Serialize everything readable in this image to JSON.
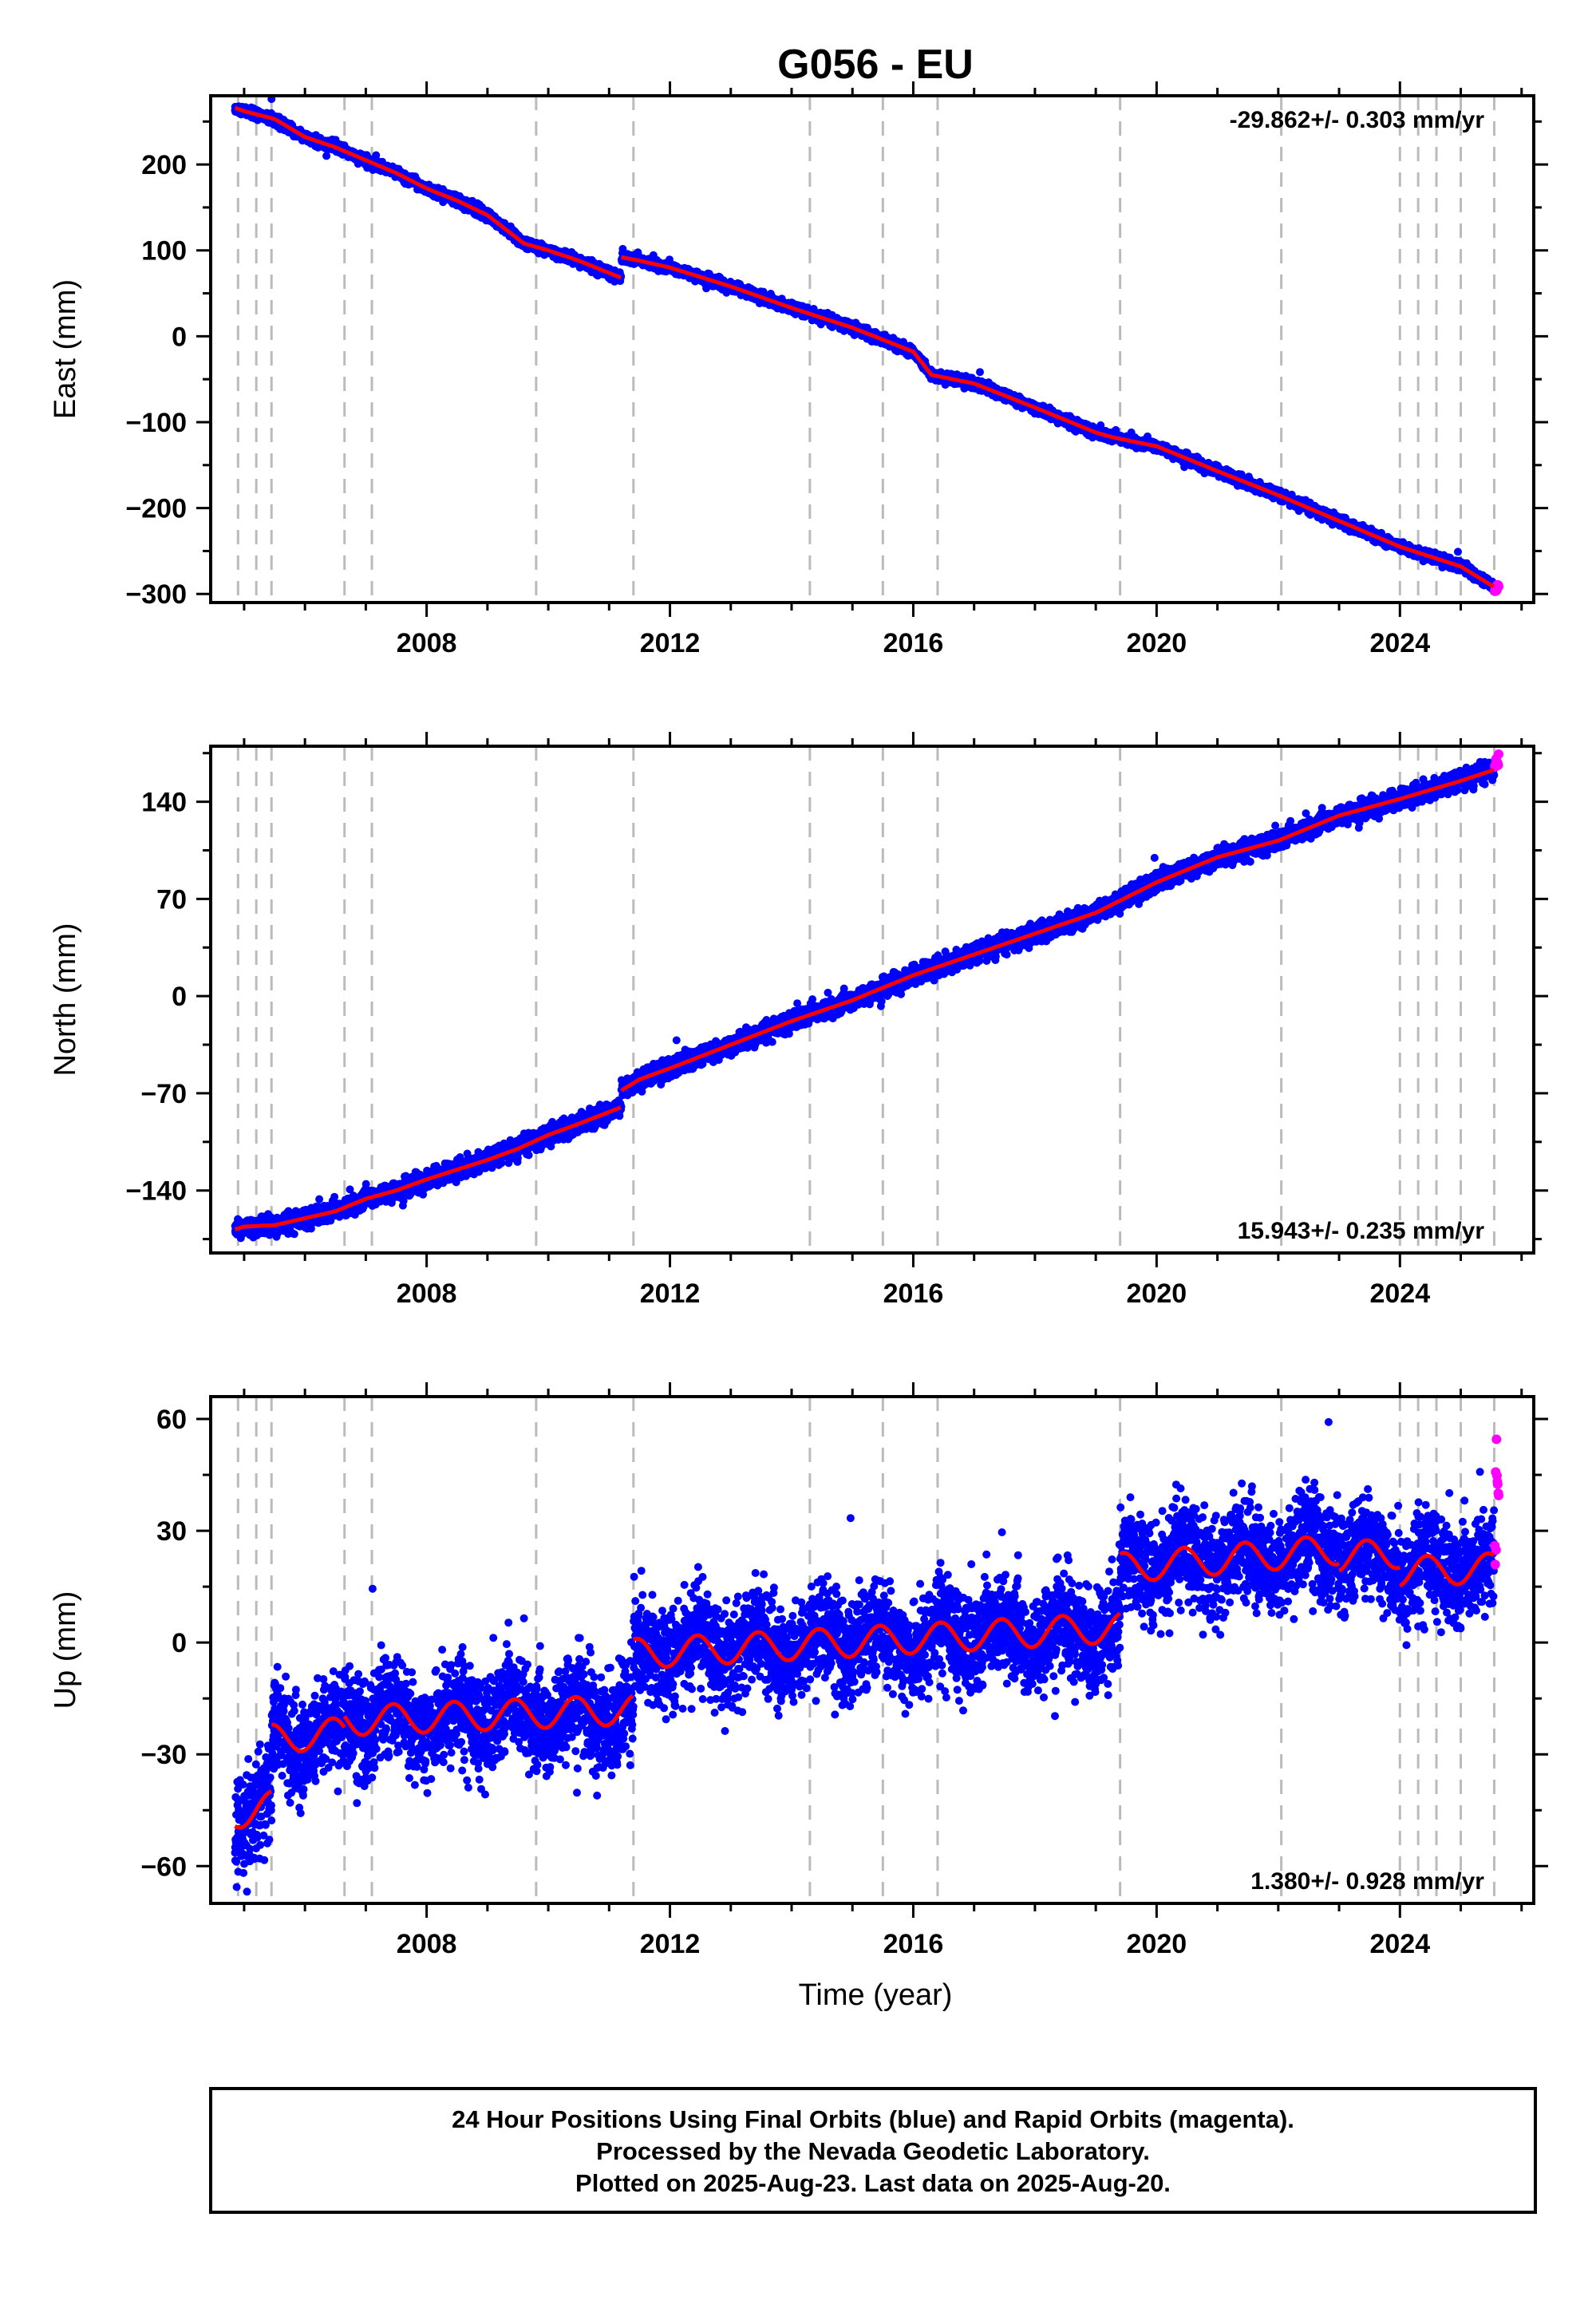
{
  "title": "G056 - EU",
  "xlabel": "Time (year)",
  "footer": [
    "24 Hour Positions Using Final Orbits (blue) and Rapid Orbits (magenta).",
    "Processed by the Nevada Geodetic Laboratory.",
    "Plotted on 2025-Aug-23. Last data on 2025-Aug-20."
  ],
  "colors": {
    "final_orbits": "#0000ff",
    "rapid_orbits": "#ff00ff",
    "model_fit": "#ff0000",
    "event_lines": "#bbbbbb",
    "frame": "#000000"
  },
  "chart_data": [
    {
      "type": "scatter",
      "component": "east",
      "ylabel": "East (mm)",
      "xlim": [
        2004.45,
        2026.2
      ],
      "ylim": [
        -310,
        280
      ],
      "xticks": [
        2008,
        2012,
        2016,
        2020,
        2024
      ],
      "yticks": [
        -300,
        -200,
        -100,
        0,
        100,
        200
      ],
      "rate_text": "-29.862+/- 0.303 mm/yr",
      "rate_position": "top-right",
      "grid": false,
      "x_start": 2004.85,
      "x_end_final": 2025.55,
      "x_end_rapid": 2025.63,
      "fit_segments": [
        {
          "x": [
            2004.85,
            2005.0,
            2005.5,
            2006.0,
            2006.5,
            2007.0,
            2007.5,
            2008.0,
            2008.5,
            2009.0,
            2009.6,
            2010.0,
            2010.5,
            2011.2
          ],
          "y": [
            266,
            262,
            253,
            232,
            220,
            205,
            190,
            172,
            158,
            141,
            108,
            100,
            88,
            68
          ]
        },
        {
          "x": [
            2011.2,
            2011.5,
            2012.0,
            2013.0,
            2014.0,
            2015.0,
            2016.0,
            2016.3,
            2017.0,
            2018.0,
            2019.0,
            2019.3,
            2020.0,
            2021.0,
            2022.0,
            2023.0,
            2024.0,
            2025.0,
            2025.55
          ],
          "y": [
            92,
            88,
            80,
            58,
            33,
            10,
            -18,
            -45,
            -55,
            -83,
            -112,
            -118,
            -128,
            -157,
            -185,
            -215,
            -245,
            -268,
            -292
          ]
        }
      ],
      "noise_mm": 2.8,
      "rapid_y_range": [
        -297,
        -288
      ],
      "event_lines_x": [
        2004.9,
        2005.2,
        2005.45,
        2006.65,
        2007.1,
        2009.8,
        2011.4,
        2014.3,
        2015.5,
        2016.4,
        2019.4,
        2022.05,
        2024.0,
        2024.3,
        2024.6,
        2025.0,
        2025.55
      ]
    },
    {
      "type": "scatter",
      "component": "north",
      "ylabel": "North (mm)",
      "xlim": [
        2004.45,
        2026.2
      ],
      "ylim": [
        -185,
        180
      ],
      "xticks": [
        2008,
        2012,
        2016,
        2020,
        2024
      ],
      "yticks": [
        -140,
        -70,
        0,
        70,
        140
      ],
      "rate_text": "15.943+/- 0.235 mm/yr",
      "rate_position": "bottom-right",
      "grid": false,
      "x_start": 2004.85,
      "x_end_final": 2025.55,
      "x_end_rapid": 2025.63,
      "fit_segments": [
        {
          "x": [
            2004.85,
            2005.0,
            2005.5,
            2006.0,
            2006.5,
            2007.0,
            2007.5,
            2008.0,
            2008.5,
            2009.0,
            2009.5,
            2010.0,
            2010.5,
            2011.2
          ],
          "y": [
            -168,
            -166,
            -165,
            -160,
            -155,
            -146,
            -140,
            -132,
            -125,
            -118,
            -110,
            -100,
            -92,
            -80
          ]
        },
        {
          "x": [
            2011.2,
            2011.5,
            2012.0,
            2013.0,
            2014.0,
            2015.0,
            2016.0,
            2017.0,
            2018.0,
            2019.0,
            2020.0,
            2021.0,
            2022.0,
            2023.0,
            2024.0,
            2025.0,
            2025.55
          ],
          "y": [
            -68,
            -60,
            -52,
            -35,
            -18,
            -3,
            15,
            30,
            45,
            60,
            82,
            100,
            112,
            130,
            142,
            155,
            163
          ]
        }
      ],
      "noise_mm": 3.2,
      "rapid_y_range": [
        165,
        175
      ],
      "event_lines_x": [
        2004.9,
        2005.2,
        2005.45,
        2006.65,
        2007.1,
        2009.8,
        2011.4,
        2014.3,
        2015.5,
        2016.4,
        2019.4,
        2022.05,
        2024.0,
        2024.3,
        2024.6,
        2025.0,
        2025.55
      ]
    },
    {
      "type": "scatter",
      "component": "up",
      "ylabel": "Up (mm)",
      "xlim": [
        2004.45,
        2026.2
      ],
      "ylim": [
        -70,
        66
      ],
      "xticks": [
        2008,
        2012,
        2016,
        2020,
        2024
      ],
      "yticks": [
        -60,
        -30,
        0,
        30,
        60
      ],
      "rate_text": "1.380+/- 0.928 mm/yr",
      "rate_position": "bottom-right",
      "grid": false,
      "x_start": 2004.85,
      "x_end_final": 2025.55,
      "x_end_rapid": 2025.63,
      "fit_segments": [
        {
          "x": [
            2004.85,
            2005.45
          ],
          "y": [
            -46,
            -44
          ]
        },
        {
          "x": [
            2005.45,
            2006.65
          ],
          "y": [
            -26,
            -24
          ]
        },
        {
          "x": [
            2006.65,
            2011.4
          ],
          "y": [
            -21,
            -18
          ]
        },
        {
          "x": [
            2011.4,
            2019.4
          ],
          "y": [
            -3,
            4
          ]
        },
        {
          "x": [
            2019.4,
            2023.0
          ],
          "y": [
            20,
            25
          ]
        },
        {
          "x": [
            2023.0,
            2024.0
          ],
          "y": [
            23,
            24
          ]
        },
        {
          "x": [
            2024.0,
            2025.55
          ],
          "y": [
            19,
            20
          ]
        }
      ],
      "seasonal_amplitude_mm": 4,
      "noise_mm": 6.5,
      "rapid_y_range": [
        20,
        58
      ],
      "event_lines_x": [
        2004.9,
        2005.2,
        2005.45,
        2006.65,
        2007.1,
        2009.8,
        2011.4,
        2014.3,
        2015.5,
        2016.4,
        2019.4,
        2022.05,
        2024.0,
        2024.3,
        2024.6,
        2025.0,
        2025.55
      ]
    }
  ]
}
